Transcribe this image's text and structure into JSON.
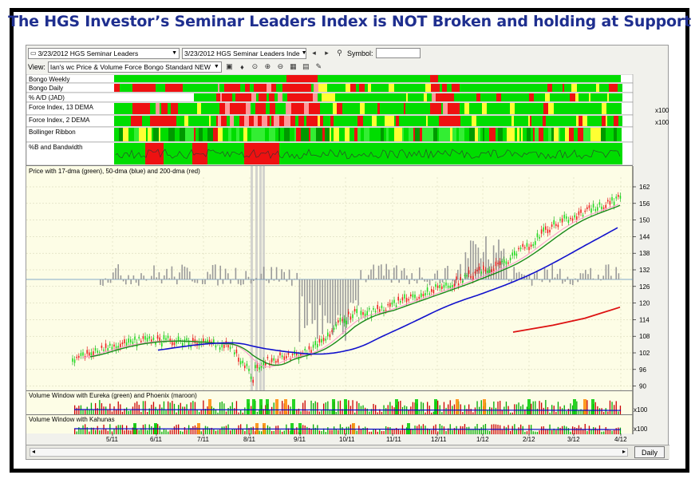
{
  "headline": "The HGS Investor’s Seminar Leaders Index is NOT Broken and holding at Support",
  "toolbar": {
    "list_combo": "3/23/2012 HGS Seminar Leaders",
    "symbol_combo": "3/23/2012 HGS Seminar Leaders  Inde",
    "symbol_label": "Symbol:",
    "symbol_value": "",
    "view_label": "View:",
    "view_combo": "Ian's wc Price & Volume Force Bongo Standard NEW"
  },
  "strips": [
    {
      "label": "Bongo Weekly"
    },
    {
      "label": "Bongo Daily"
    },
    {
      "label": "% A/D (JAD)"
    },
    {
      "label": "Force Index, 13 DEMA",
      "scale": "x100"
    },
    {
      "label": "Force Index, 2 DEMA",
      "scale": "x100"
    },
    {
      "label": "Bollinger Ribbon"
    },
    {
      "label": "%B and Bandwidth"
    }
  ],
  "main_panel": {
    "title": "Price with 17-dma (green), 50-dma (blue) and 200-dma (red)",
    "y_ticks": [
      "162",
      "156",
      "150",
      "144",
      "138",
      "132",
      "126",
      "120",
      "114",
      "108",
      "102",
      "96",
      "90"
    ]
  },
  "volume_panels": [
    {
      "title": "Volume Window with Eureka (green) and Phoenix (maroon)",
      "scale": "x100"
    },
    {
      "title": "Volume Window with Kahunas",
      "scale": "x100"
    }
  ],
  "date_ticks": [
    "5/11",
    "6/11",
    "7/11",
    "8/11",
    "9/11",
    "10/11",
    "11/11",
    "12/11",
    "1/12",
    "2/12",
    "3/12",
    "4/12"
  ],
  "status": {
    "period_button": "Daily"
  },
  "colors": {
    "bull": "#00dd00",
    "bear": "#ee1111",
    "ma17": "#1a8a1a",
    "ma50": "#1111cc",
    "ma200": "#dd1111"
  }
}
